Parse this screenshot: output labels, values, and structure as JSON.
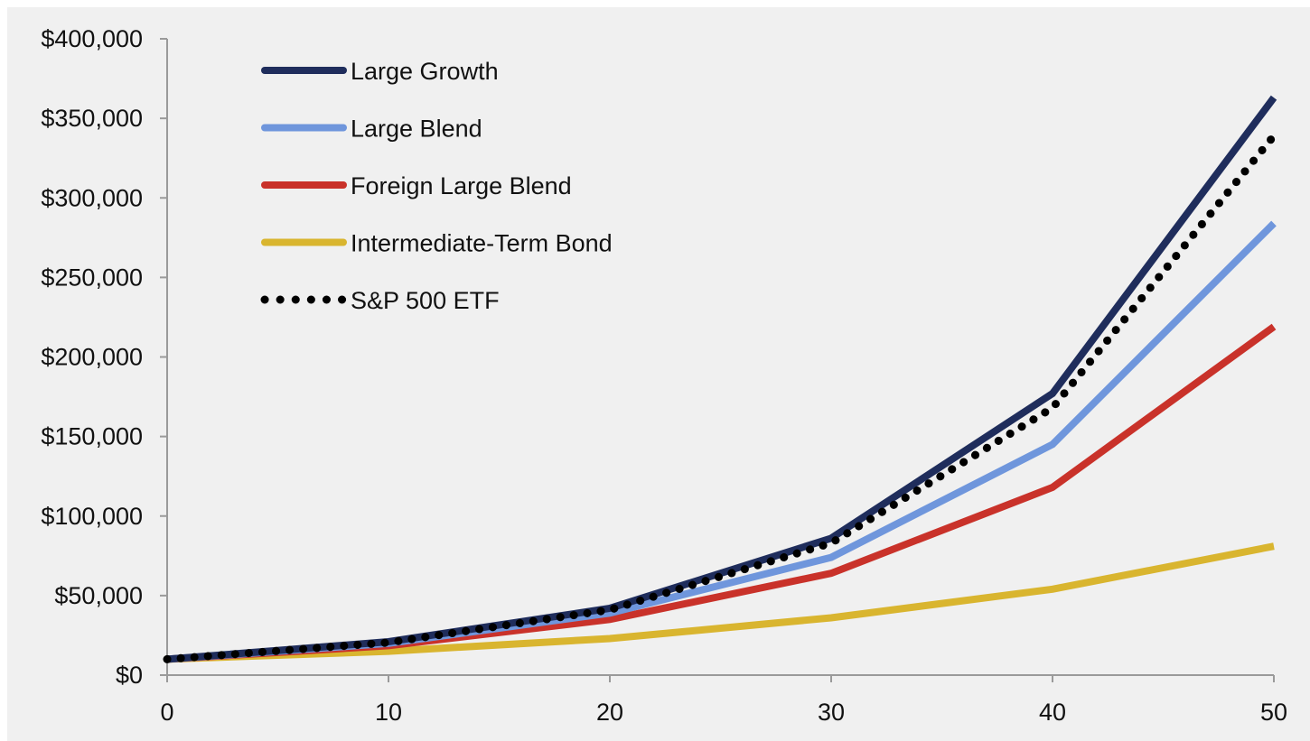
{
  "chart_data": {
    "type": "line",
    "title": "",
    "xlabel": "",
    "ylabel": "",
    "x": [
      0,
      10,
      20,
      30,
      40,
      50
    ],
    "xlim": [
      0,
      50
    ],
    "ylim": [
      0,
      400000
    ],
    "x_ticks": [
      0,
      10,
      20,
      30,
      40,
      50
    ],
    "x_tick_labels": [
      "0",
      "10",
      "20",
      "30",
      "40",
      "50"
    ],
    "y_ticks": [
      0,
      50000,
      100000,
      150000,
      200000,
      250000,
      300000,
      350000,
      400000
    ],
    "y_tick_labels": [
      "$0",
      "$50,000",
      "$100,000",
      "$150,000",
      "$200,000",
      "$250,000",
      "$300,000",
      "$350,000",
      "$400,000"
    ],
    "grid": false,
    "legend_position": "top-left",
    "series": [
      {
        "name": "Large Growth",
        "color": "#1f2d5c",
        "style": "solid",
        "values": [
          10000,
          21000,
          42000,
          86000,
          177000,
          363000
        ]
      },
      {
        "name": "Large Blend",
        "color": "#6f96dc",
        "style": "solid",
        "values": [
          10000,
          20000,
          39000,
          74000,
          145000,
          284000
        ]
      },
      {
        "name": "Foreign Large Blend",
        "color": "#c9322a",
        "style": "solid",
        "values": [
          10000,
          18500,
          35000,
          64000,
          118000,
          219000
        ]
      },
      {
        "name": "Intermediate-Term Bond",
        "color": "#d9b52f",
        "style": "solid",
        "values": [
          10000,
          15000,
          23000,
          36000,
          54000,
          81000
        ]
      },
      {
        "name": "S&P 500 ETF",
        "color": "#000000",
        "style": "dotted",
        "values": [
          10000,
          20500,
          41000,
          83000,
          168000,
          339000
        ]
      }
    ]
  }
}
